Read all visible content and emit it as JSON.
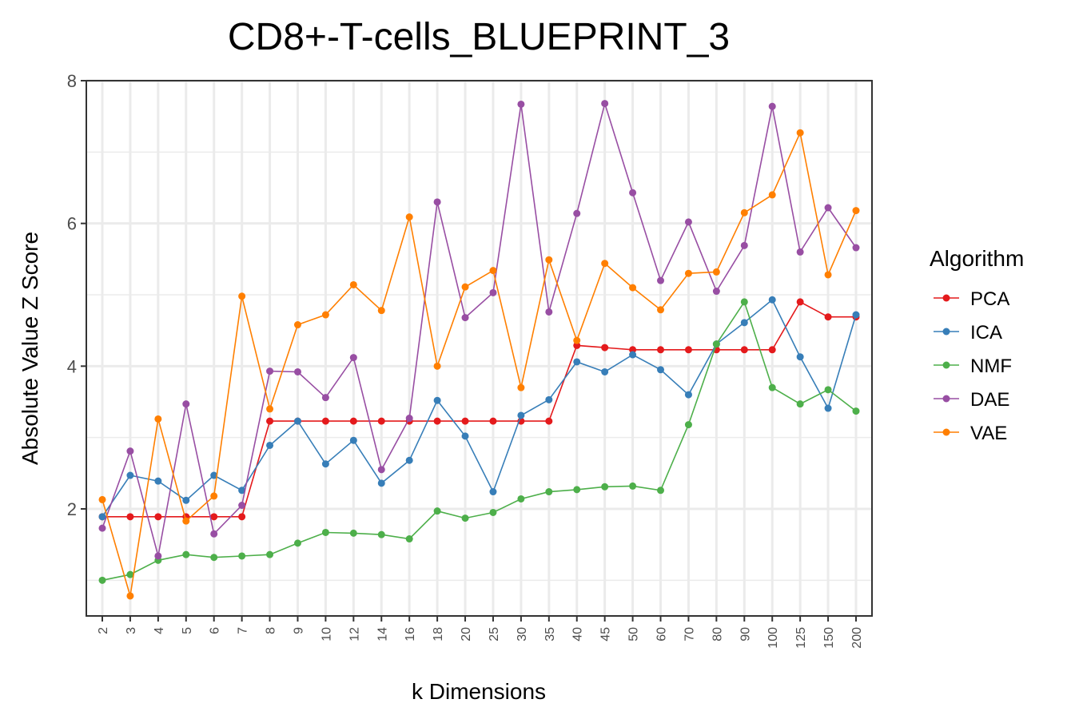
{
  "chart_data": {
    "type": "line",
    "title": "CD8+-T-cells_BLUEPRINT_3",
    "xlabel": "k Dimensions",
    "ylabel": "Absolute Value Z Score",
    "categories": [
      "2",
      "3",
      "4",
      "5",
      "6",
      "7",
      "8",
      "9",
      "10",
      "12",
      "14",
      "16",
      "18",
      "20",
      "25",
      "30",
      "35",
      "40",
      "45",
      "50",
      "60",
      "70",
      "80",
      "90",
      "100",
      "125",
      "150",
      "200"
    ],
    "ylim": [
      0.5,
      8
    ],
    "yticks": [
      "2",
      "4",
      "6",
      "8"
    ],
    "grid": true,
    "legend_title": "Algorithm",
    "legend_position": "right",
    "series": [
      {
        "name": "PCA",
        "color": "#E41A1C",
        "values": [
          1.89,
          1.89,
          1.89,
          1.89,
          1.89,
          1.89,
          3.23,
          3.23,
          3.23,
          3.23,
          3.23,
          3.23,
          3.23,
          3.23,
          3.23,
          3.23,
          3.23,
          4.29,
          4.26,
          4.23,
          4.23,
          4.23,
          4.23,
          4.23,
          4.23,
          4.9,
          4.69,
          4.69
        ]
      },
      {
        "name": "ICA",
        "color": "#377EB8",
        "values": [
          1.89,
          2.47,
          2.39,
          2.12,
          2.47,
          2.26,
          2.89,
          3.23,
          2.63,
          2.96,
          2.36,
          2.68,
          3.52,
          3.02,
          2.24,
          3.31,
          3.53,
          4.06,
          3.92,
          4.16,
          3.95,
          3.6,
          4.31,
          4.61,
          4.93,
          4.13,
          3.41,
          4.72
        ]
      },
      {
        "name": "NMF",
        "color": "#4DAF4A",
        "values": [
          1.0,
          1.08,
          1.28,
          1.36,
          1.32,
          1.34,
          1.36,
          1.52,
          1.67,
          1.66,
          1.64,
          1.58,
          1.97,
          1.87,
          1.95,
          2.14,
          2.24,
          2.27,
          2.31,
          2.32,
          2.26,
          3.18,
          4.31,
          4.9,
          3.7,
          3.47,
          3.67,
          3.37
        ]
      },
      {
        "name": "DAE",
        "color": "#984EA3",
        "values": [
          1.73,
          2.81,
          1.34,
          3.47,
          1.65,
          2.05,
          3.93,
          3.92,
          3.56,
          4.12,
          2.55,
          3.27,
          6.3,
          4.68,
          5.03,
          7.67,
          4.76,
          6.14,
          7.68,
          6.43,
          5.2,
          6.02,
          5.05,
          5.69,
          7.64,
          5.6,
          6.22,
          5.66
        ]
      },
      {
        "name": "VAE",
        "color": "#FF7F00",
        "values": [
          2.13,
          0.78,
          3.26,
          1.83,
          2.18,
          4.98,
          3.4,
          4.58,
          4.72,
          5.14,
          4.78,
          6.09,
          4.0,
          5.11,
          5.34,
          3.7,
          5.49,
          4.36,
          5.44,
          5.1,
          4.79,
          5.3,
          5.32,
          6.15,
          6.4,
          7.27,
          5.28,
          6.18
        ]
      }
    ]
  }
}
